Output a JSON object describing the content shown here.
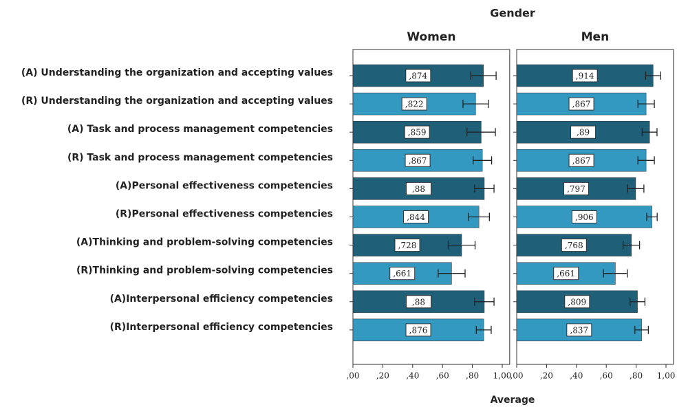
{
  "chart_data": {
    "type": "bar",
    "title": "Gender",
    "xlabel": "Average",
    "categories": [
      "(A) Understanding the organization and accepting values",
      "(R) Understanding the organization and accepting values",
      "(A) Task and process management competencies",
      "(R) Task and process management competencies",
      "(A)Personal effectiveness competencies",
      "(R)Personal effectiveness competencies",
      "(A)Thinking and problem-solving competencies",
      "(R)Thinking and problem-solving competencies",
      "(A)Interpersonal efficiency competencies",
      "(R)Interpersonal efficiency competencies"
    ],
    "colors": [
      "#1f5f78",
      "#3399c0",
      "#1f5f78",
      "#3399c0",
      "#1f5f78",
      "#3399c0",
      "#1f5f78",
      "#3399c0",
      "#1f5f78",
      "#3399c0"
    ],
    "series": [
      {
        "name": "Women",
        "values": [
          0.874,
          0.822,
          0.859,
          0.867,
          0.88,
          0.844,
          0.728,
          0.661,
          0.88,
          0.876
        ],
        "value_labels": [
          ",874",
          ",822",
          ",859",
          ",867",
          ",88",
          ",844",
          ",728",
          ",661",
          ",88",
          ",876"
        ],
        "errors": [
          0.085,
          0.085,
          0.095,
          0.062,
          0.065,
          0.07,
          0.09,
          0.09,
          0.065,
          0.05
        ]
      },
      {
        "name": "Men",
        "values": [
          0.914,
          0.867,
          0.89,
          0.867,
          0.797,
          0.906,
          0.768,
          0.661,
          0.809,
          0.837
        ],
        "value_labels": [
          ",914",
          ",867",
          ",89",
          ",867",
          ",797",
          ",906",
          ",768",
          ",661",
          ",809",
          ",837"
        ],
        "errors": [
          0.05,
          0.055,
          0.05,
          0.055,
          0.055,
          0.035,
          0.055,
          0.08,
          0.05,
          0.045
        ]
      }
    ],
    "xlim": [
      0,
      1.05
    ],
    "xticks": [
      {
        "value": 0,
        "label": ",00"
      },
      {
        "value": 0.2,
        "label": ",20"
      },
      {
        "value": 0.4,
        "label": ",40"
      },
      {
        "value": 0.6,
        "label": ",60"
      },
      {
        "value": 0.8,
        "label": ",80"
      },
      {
        "value": 1,
        "label": "1,00"
      }
    ]
  }
}
